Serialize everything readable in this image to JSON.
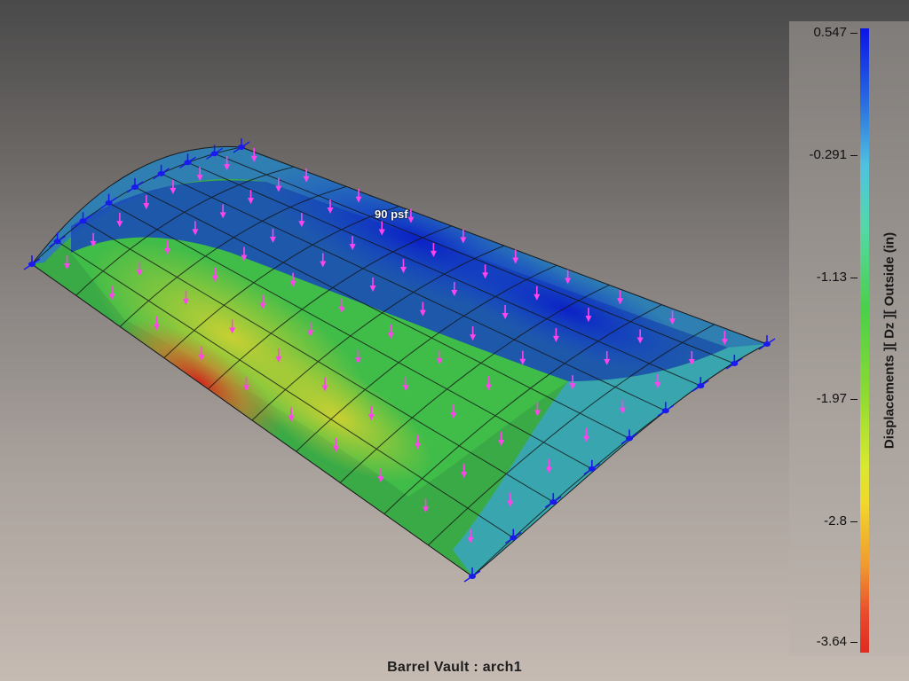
{
  "viewport": {
    "load_label": "90 psf",
    "model_title": "Barrel Vault : arch1"
  },
  "legend": {
    "title": "Displacements ][ Dz ][ Outside (in)",
    "ticks": [
      "0.547",
      "-0.291",
      "-1.13",
      "-1.97",
      "-2.8",
      "-3.64"
    ],
    "max": 0.547,
    "min": -3.64,
    "colors": {
      "max": "#0a14e6",
      "mid": "#4ad04a",
      "min": "#e02a22"
    }
  },
  "icons": {
    "load_arrow": "arrow-down-icon",
    "support": "pin-support-icon"
  },
  "colors": {
    "load_arrow": "#ff44ee",
    "support": "#1a1aee",
    "mesh_line": "#141414"
  }
}
